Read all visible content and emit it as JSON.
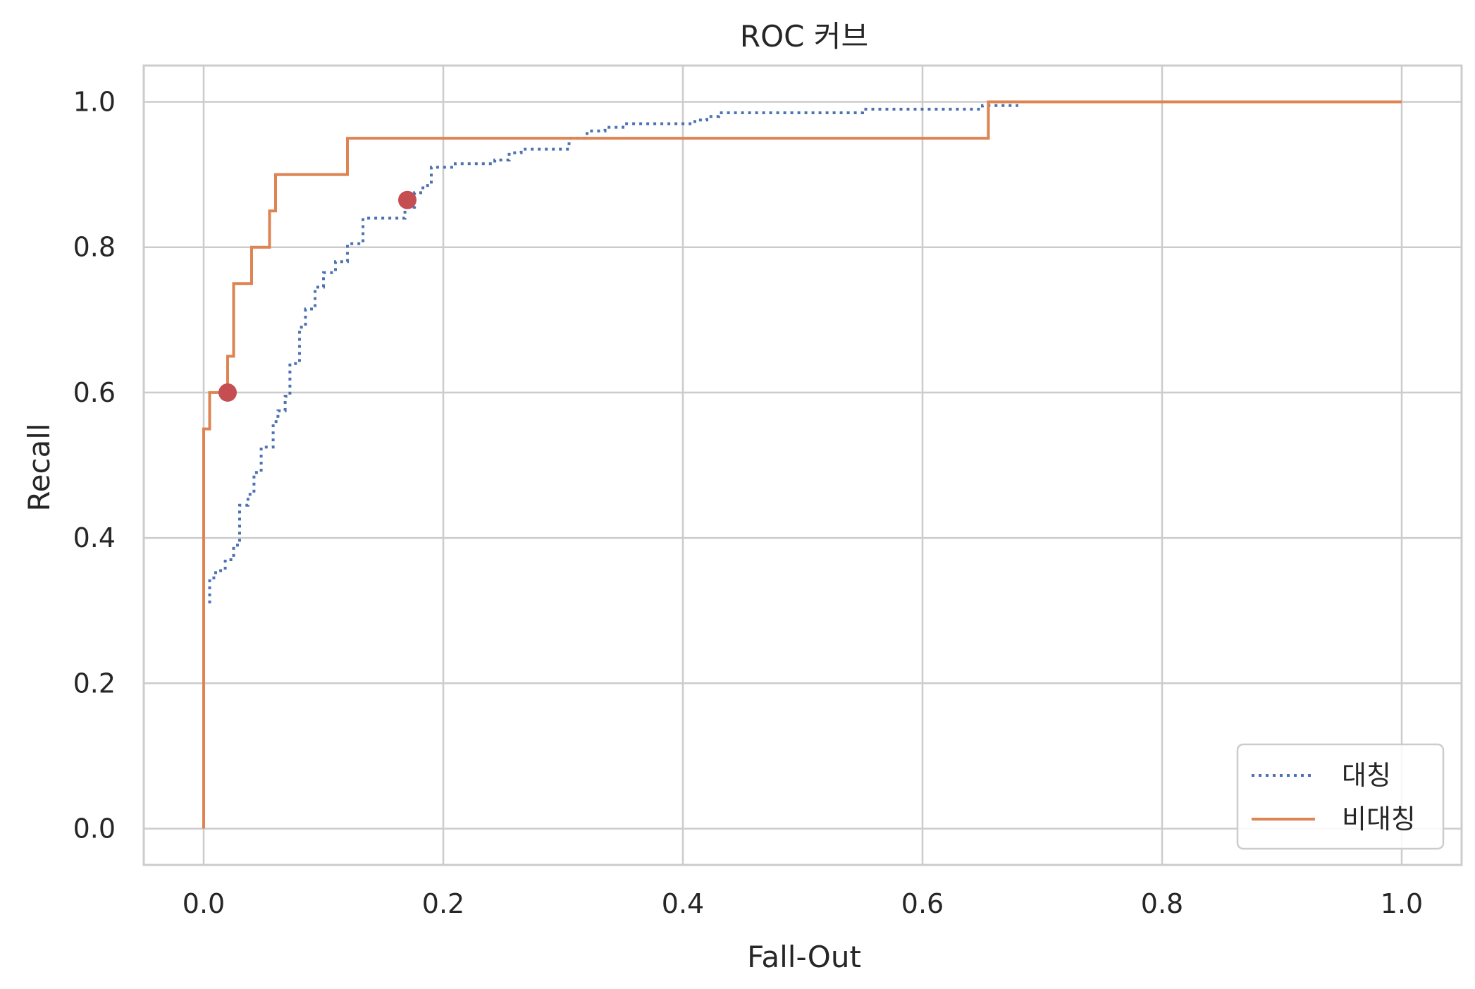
{
  "chart_data": {
    "type": "line",
    "title": "ROC 커브",
    "xlabel": "Fall-Out",
    "ylabel": "Recall",
    "xlim": [
      -0.05,
      1.05
    ],
    "ylim": [
      -0.05,
      1.05
    ],
    "xticks": [
      0.0,
      0.2,
      0.4,
      0.6,
      0.8,
      1.0
    ],
    "yticks": [
      0.0,
      0.2,
      0.4,
      0.6,
      0.8,
      1.0
    ],
    "xtick_labels": [
      "0.0",
      "0.2",
      "0.4",
      "0.6",
      "0.8",
      "1.0"
    ],
    "ytick_labels": [
      "0.0",
      "0.2",
      "0.4",
      "0.6",
      "0.8",
      "1.0"
    ],
    "grid": true,
    "legend_position": "lower-right",
    "series": [
      {
        "name": "대칭",
        "style": "dotted",
        "color": "#4c72b0",
        "x": [
          0.005,
          0.005,
          0.01,
          0.01,
          0.018,
          0.018,
          0.025,
          0.025,
          0.03,
          0.03,
          0.037,
          0.037,
          0.042,
          0.042,
          0.048,
          0.048,
          0.058,
          0.058,
          0.062,
          0.062,
          0.068,
          0.068,
          0.072,
          0.072,
          0.08,
          0.08,
          0.085,
          0.085,
          0.093,
          0.093,
          0.1,
          0.1,
          0.11,
          0.11,
          0.12,
          0.12,
          0.133,
          0.133,
          0.142,
          0.142,
          0.168,
          0.168,
          0.176,
          0.176,
          0.183,
          0.183,
          0.19,
          0.19,
          0.21,
          0.21,
          0.243,
          0.243,
          0.255,
          0.255,
          0.265,
          0.265,
          0.275,
          0.275,
          0.305,
          0.305,
          0.32,
          0.32,
          0.335,
          0.335,
          0.35,
          0.35,
          0.41,
          0.41,
          0.42,
          0.42,
          0.43,
          0.43,
          0.55,
          0.55,
          0.56,
          0.56,
          0.65,
          0.65,
          0.66,
          0.66,
          0.68
        ],
        "y": [
          0.31,
          0.345,
          0.345,
          0.355,
          0.355,
          0.37,
          0.37,
          0.39,
          0.39,
          0.445,
          0.445,
          0.46,
          0.46,
          0.49,
          0.49,
          0.525,
          0.525,
          0.56,
          0.56,
          0.575,
          0.575,
          0.595,
          0.595,
          0.64,
          0.64,
          0.69,
          0.69,
          0.715,
          0.715,
          0.745,
          0.745,
          0.765,
          0.765,
          0.78,
          0.78,
          0.805,
          0.805,
          0.84,
          0.84,
          0.84,
          0.84,
          0.855,
          0.855,
          0.875,
          0.875,
          0.885,
          0.885,
          0.91,
          0.91,
          0.915,
          0.915,
          0.92,
          0.92,
          0.93,
          0.93,
          0.935,
          0.935,
          0.935,
          0.935,
          0.95,
          0.95,
          0.96,
          0.96,
          0.965,
          0.965,
          0.97,
          0.97,
          0.975,
          0.975,
          0.98,
          0.98,
          0.985,
          0.985,
          0.99,
          0.99,
          0.99,
          0.99,
          0.995,
          0.995,
          0.995,
          0.995
        ]
      },
      {
        "name": "비대칭",
        "style": "solid",
        "color": "#dd8452",
        "x": [
          0.0,
          0.0,
          0.005,
          0.005,
          0.02,
          0.02,
          0.025,
          0.025,
          0.04,
          0.04,
          0.055,
          0.055,
          0.06,
          0.06,
          0.12,
          0.12,
          0.655,
          0.655,
          1.0
        ],
        "y": [
          0.0,
          0.55,
          0.55,
          0.6,
          0.6,
          0.65,
          0.65,
          0.75,
          0.75,
          0.8,
          0.8,
          0.85,
          0.85,
          0.9,
          0.9,
          0.95,
          0.95,
          1.0,
          1.0
        ]
      }
    ],
    "markers": [
      {
        "x": 0.17,
        "y": 0.865,
        "color": "#c44e52"
      },
      {
        "x": 0.02,
        "y": 0.6,
        "color": "#c44e52"
      }
    ]
  }
}
